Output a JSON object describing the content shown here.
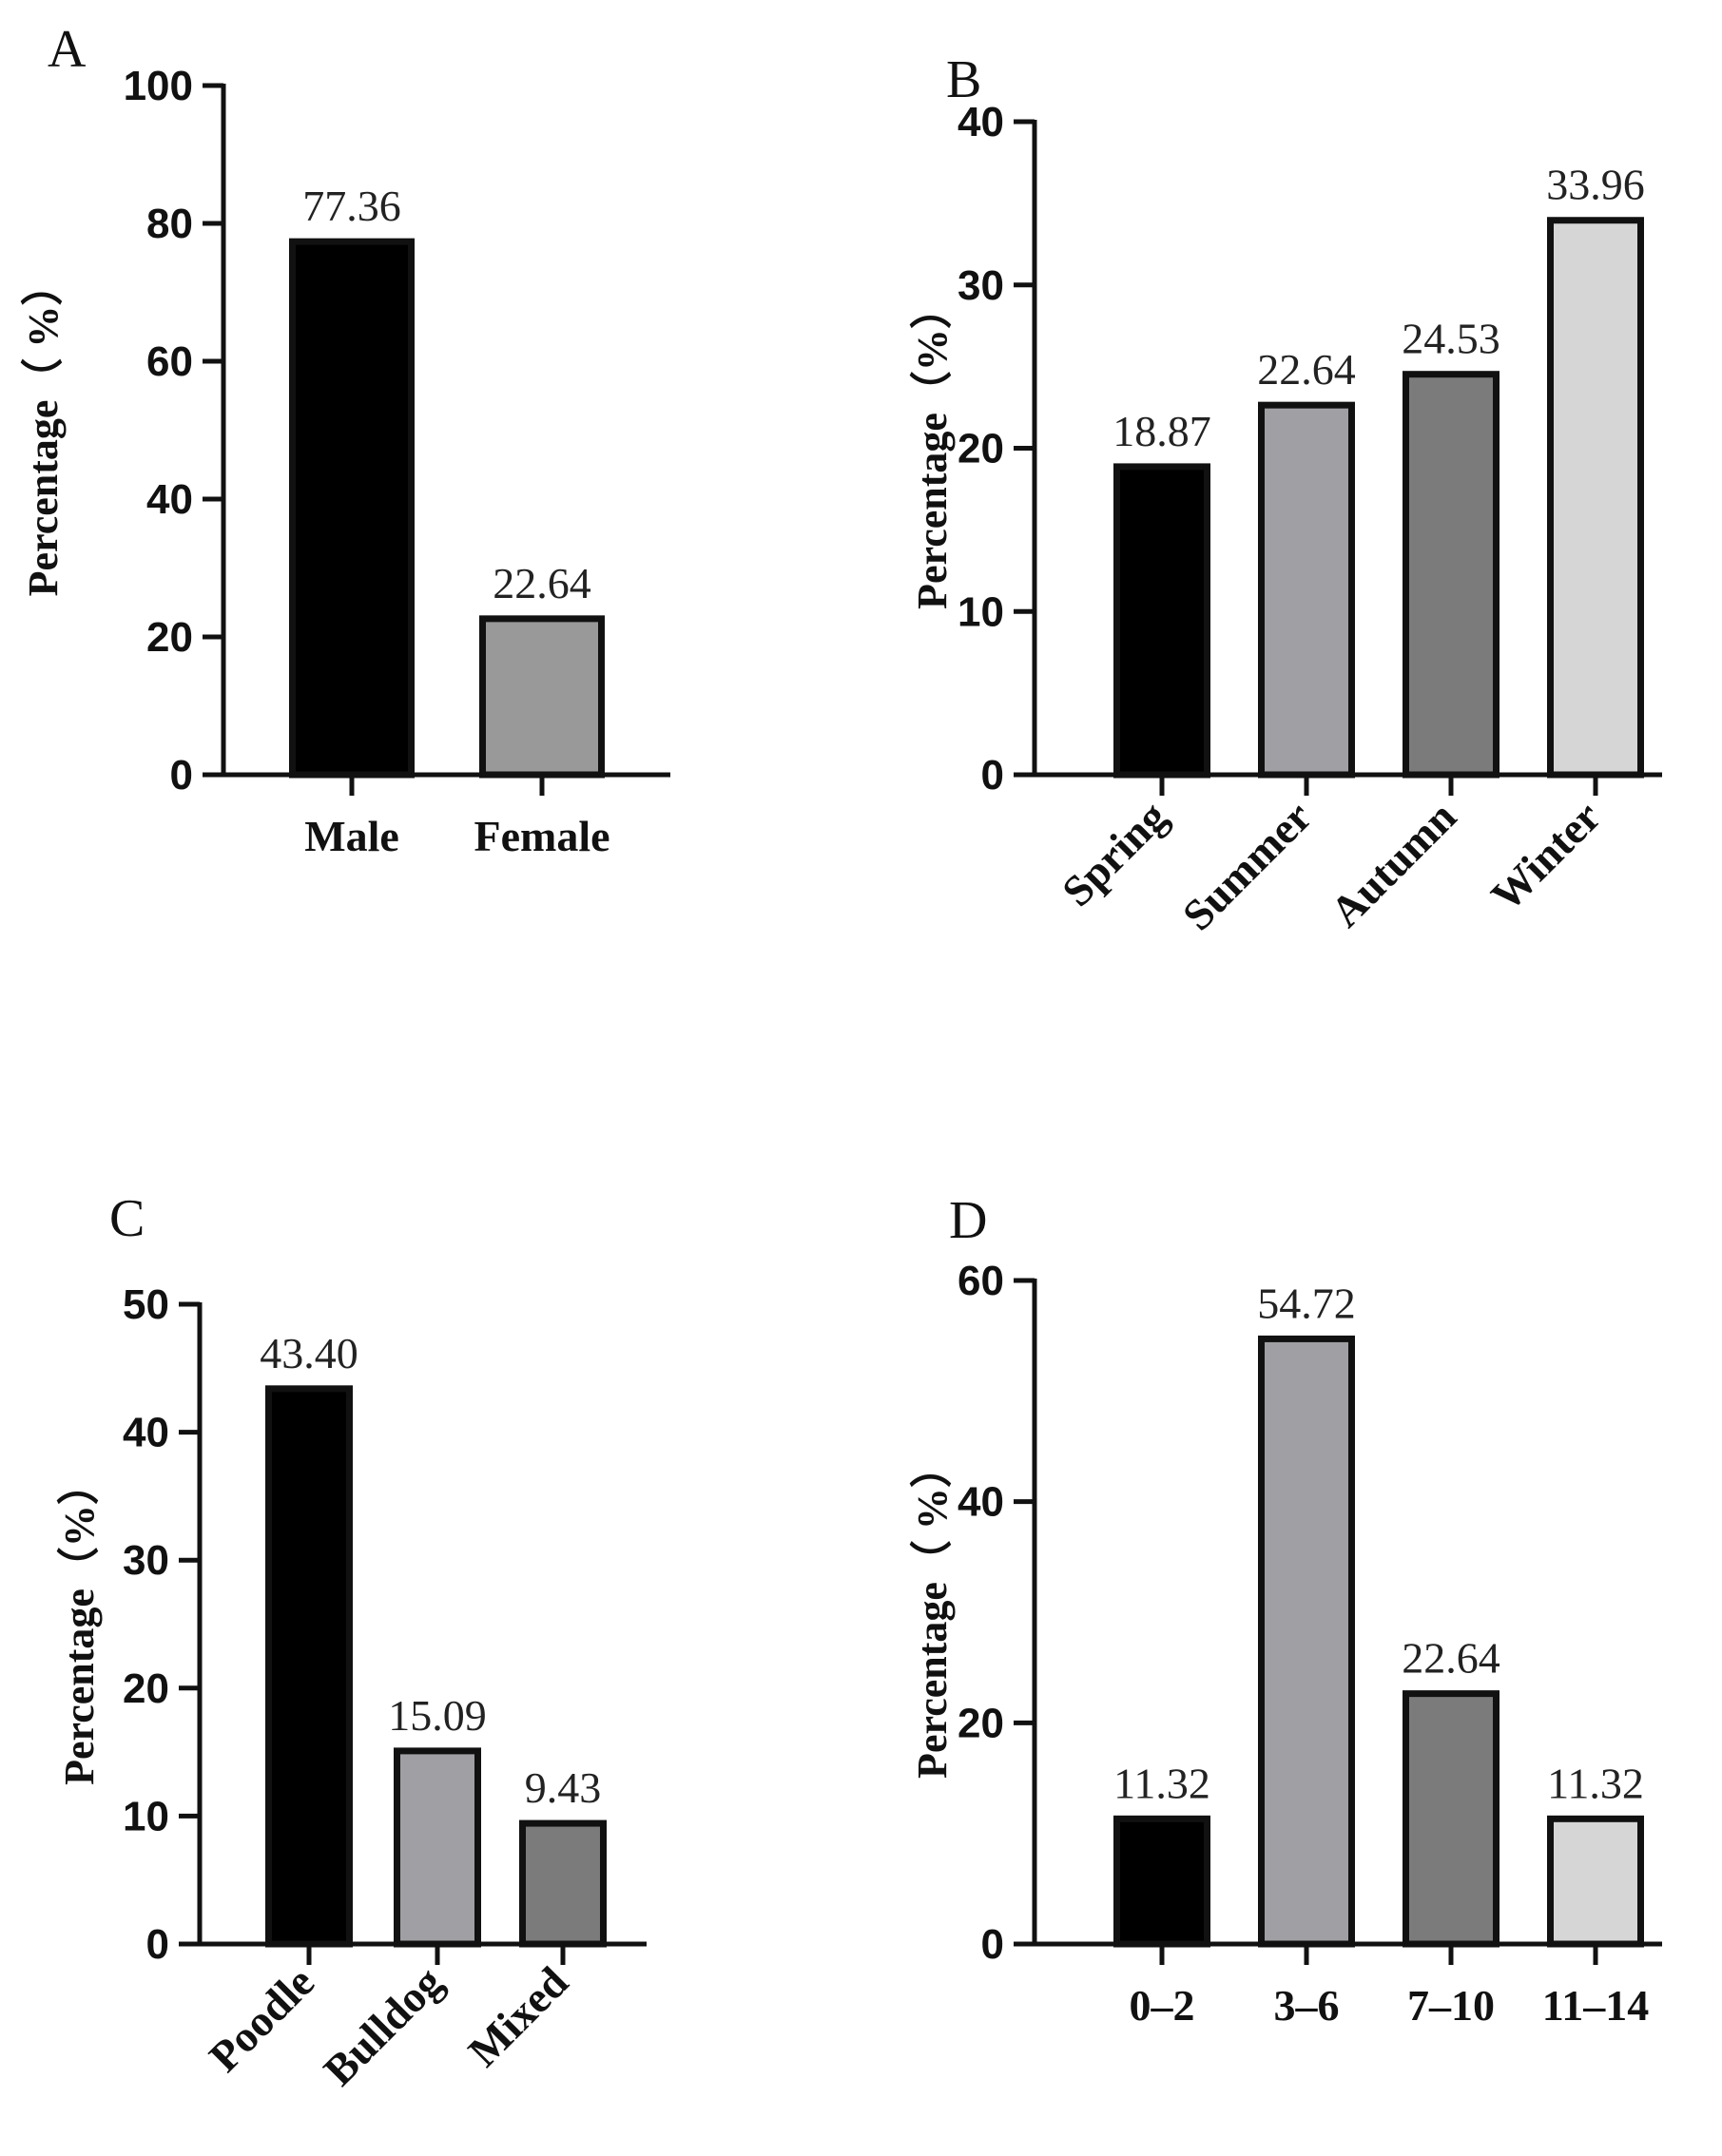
{
  "chart_data": [
    {
      "panel": "A",
      "type": "bar",
      "categories": [
        "Male",
        "Female"
      ],
      "values": [
        77.36,
        22.64
      ],
      "value_labels": [
        "77.36",
        "22.64"
      ],
      "bar_colors": [
        "#000000",
        "#999999"
      ],
      "title": "",
      "xlabel": "",
      "ylabel": "Percentage（ %）",
      "ylim": [
        0,
        100
      ],
      "yticks": [
        0,
        20,
        40,
        60,
        80,
        100
      ],
      "ytick_labels": [
        "0",
        "20",
        "40",
        "60",
        "80",
        "100"
      ],
      "rotate_categories": false
    },
    {
      "panel": "B",
      "type": "bar",
      "categories": [
        "Spring",
        "Summer",
        "Autumn",
        "Winter"
      ],
      "values": [
        18.87,
        22.64,
        24.53,
        33.96
      ],
      "value_labels": [
        "18.87",
        "22.64",
        "24.53",
        "33.96"
      ],
      "bar_colors": [
        "#000000",
        "#a0a0a4",
        "#7b7b7b",
        "#d6d6d6"
      ],
      "title": "",
      "xlabel": "",
      "ylabel": "Percentage（%）",
      "ylim": [
        0,
        40
      ],
      "yticks": [
        0,
        10,
        20,
        30,
        40
      ],
      "ytick_labels": [
        "0",
        "10",
        "20",
        "30",
        "40"
      ],
      "rotate_categories": true
    },
    {
      "panel": "C",
      "type": "bar",
      "categories": [
        "Poodle",
        "Bulldog",
        "Mixed"
      ],
      "values": [
        43.4,
        15.09,
        9.43
      ],
      "value_labels": [
        "43.40",
        "15.09",
        "9.43"
      ],
      "bar_colors": [
        "#000000",
        "#a0a0a4",
        "#7b7b7b"
      ],
      "title": "",
      "xlabel": "",
      "ylabel": "Percentage（%）",
      "ylim": [
        0,
        50
      ],
      "yticks": [
        0,
        10,
        20,
        30,
        40,
        50
      ],
      "ytick_labels": [
        "0",
        "10",
        "20",
        "30",
        "40",
        "50"
      ],
      "rotate_categories": true
    },
    {
      "panel": "D",
      "type": "bar",
      "categories": [
        "0–2",
        "3–6",
        "7–10",
        "11–14"
      ],
      "values": [
        11.32,
        54.72,
        22.64,
        11.32
      ],
      "value_labels": [
        "11.32",
        "54.72",
        "22.64",
        "11.32"
      ],
      "bar_colors": [
        "#000000",
        "#a0a0a4",
        "#7b7b7b",
        "#d6d6d6"
      ],
      "title": "",
      "xlabel": "",
      "ylabel": "Percentage（ %）",
      "ylim": [
        0,
        60
      ],
      "yticks": [
        0,
        20,
        40,
        60
      ],
      "ytick_labels": [
        "0",
        "20",
        "40",
        "60"
      ],
      "rotate_categories": false
    }
  ]
}
